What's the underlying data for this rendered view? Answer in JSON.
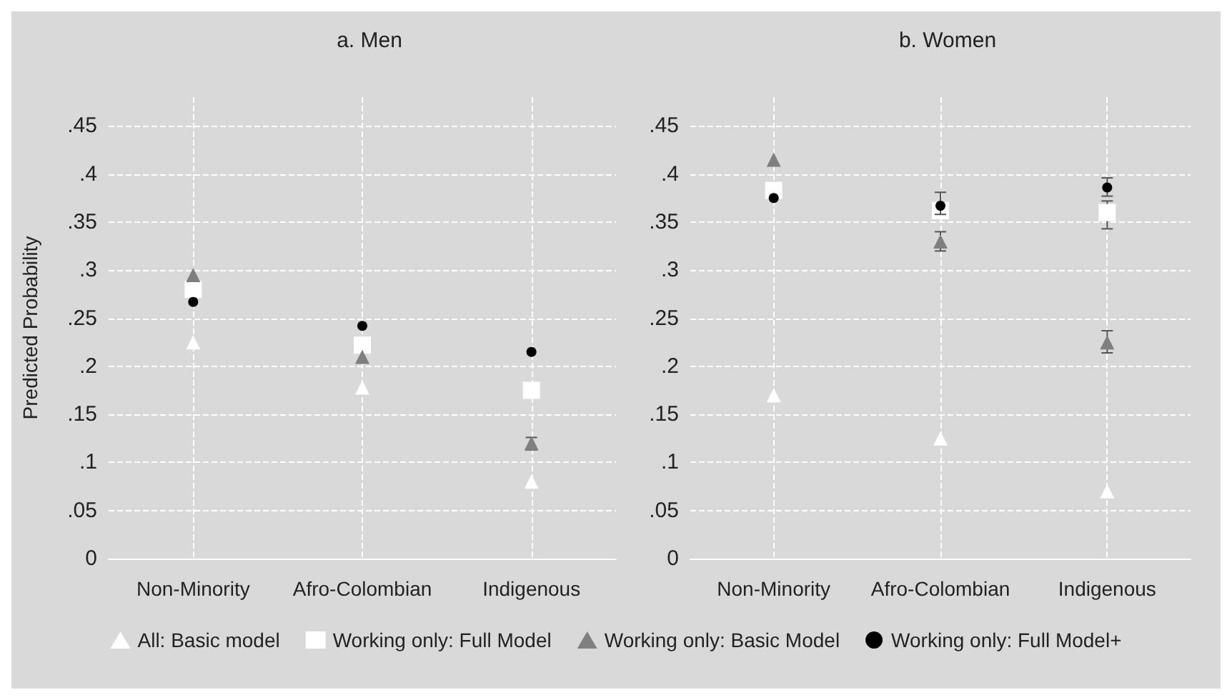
{
  "chart_data": [
    {
      "type": "scatter",
      "title": "a. Men",
      "ylabel": "Predicted Probability",
      "categories": [
        "Non-Minority",
        "Afro-Colombian",
        "Indigenous"
      ],
      "ylim": [
        0,
        0.48
      ],
      "yticks": [
        0,
        {
          "value": 0.05,
          "label": ".05"
        },
        {
          "value": 0.1,
          "label": ".1"
        },
        {
          "value": 0.15,
          "label": ".15"
        },
        {
          "value": 0.2,
          "label": ".2"
        },
        {
          "value": 0.25,
          "label": ".25"
        },
        {
          "value": 0.3,
          "label": ".3"
        },
        {
          "value": 0.35,
          "label": ".35"
        },
        {
          "value": 0.4,
          "label": ".4"
        },
        {
          "value": 0.45,
          "label": ".45"
        }
      ],
      "grid": true,
      "legend": "bottom",
      "series": [
        {
          "name": "All: Basic model",
          "color": "#ffffff",
          "marker": "triangle",
          "values": [
            0.225,
            0.178,
            0.08
          ]
        },
        {
          "name": "Working only: Full Model",
          "color": "#ffffff",
          "marker": "square",
          "values": [
            0.28,
            0.222,
            0.175
          ]
        },
        {
          "name": "Working only: Basic Model",
          "color": "#7f7f7f",
          "marker": "triangle",
          "values": [
            0.295,
            0.21,
            0.12
          ],
          "errors": [
            null,
            null,
            [
              0.113,
              0.126
            ]
          ]
        },
        {
          "name": "Working only: Full Model+",
          "color": "#000000",
          "marker": "circle",
          "values": [
            0.267,
            0.242,
            0.215
          ]
        }
      ]
    },
    {
      "type": "scatter",
      "title": "b. Women",
      "categories": [
        "Non-Minority",
        "Afro-Colombian",
        "Indigenous"
      ],
      "ylim": [
        0,
        0.48
      ],
      "yticks": [
        0,
        {
          "value": 0.05,
          "label": ".05"
        },
        {
          "value": 0.1,
          "label": ".1"
        },
        {
          "value": 0.15,
          "label": ".15"
        },
        {
          "value": 0.2,
          "label": ".2"
        },
        {
          "value": 0.25,
          "label": ".25"
        },
        {
          "value": 0.3,
          "label": ".3"
        },
        {
          "value": 0.35,
          "label": ".35"
        },
        {
          "value": 0.4,
          "label": ".4"
        },
        {
          "value": 0.45,
          "label": ".45"
        }
      ],
      "grid": true,
      "series": [
        {
          "color": "#ffffff",
          "marker": "triangle",
          "values": [
            0.17,
            0.125,
            0.07
          ]
        },
        {
          "color": "#ffffff",
          "marker": "square",
          "values": [
            0.383,
            0.362,
            0.36
          ],
          "errors": [
            null,
            null,
            [
              0.343,
              0.372
            ]
          ]
        },
        {
          "color": "#7f7f7f",
          "marker": "triangle",
          "values": [
            0.415,
            0.33,
            0.225
          ],
          "errors": [
            null,
            [
              0.32,
              0.34
            ],
            [
              0.214,
              0.237
            ]
          ]
        },
        {
          "color": "#000000",
          "marker": "circle",
          "values": [
            0.375,
            0.367,
            0.386
          ],
          "errors": [
            null,
            [
              0.358,
              0.381
            ],
            [
              0.377,
              0.396
            ]
          ]
        }
      ]
    }
  ]
}
